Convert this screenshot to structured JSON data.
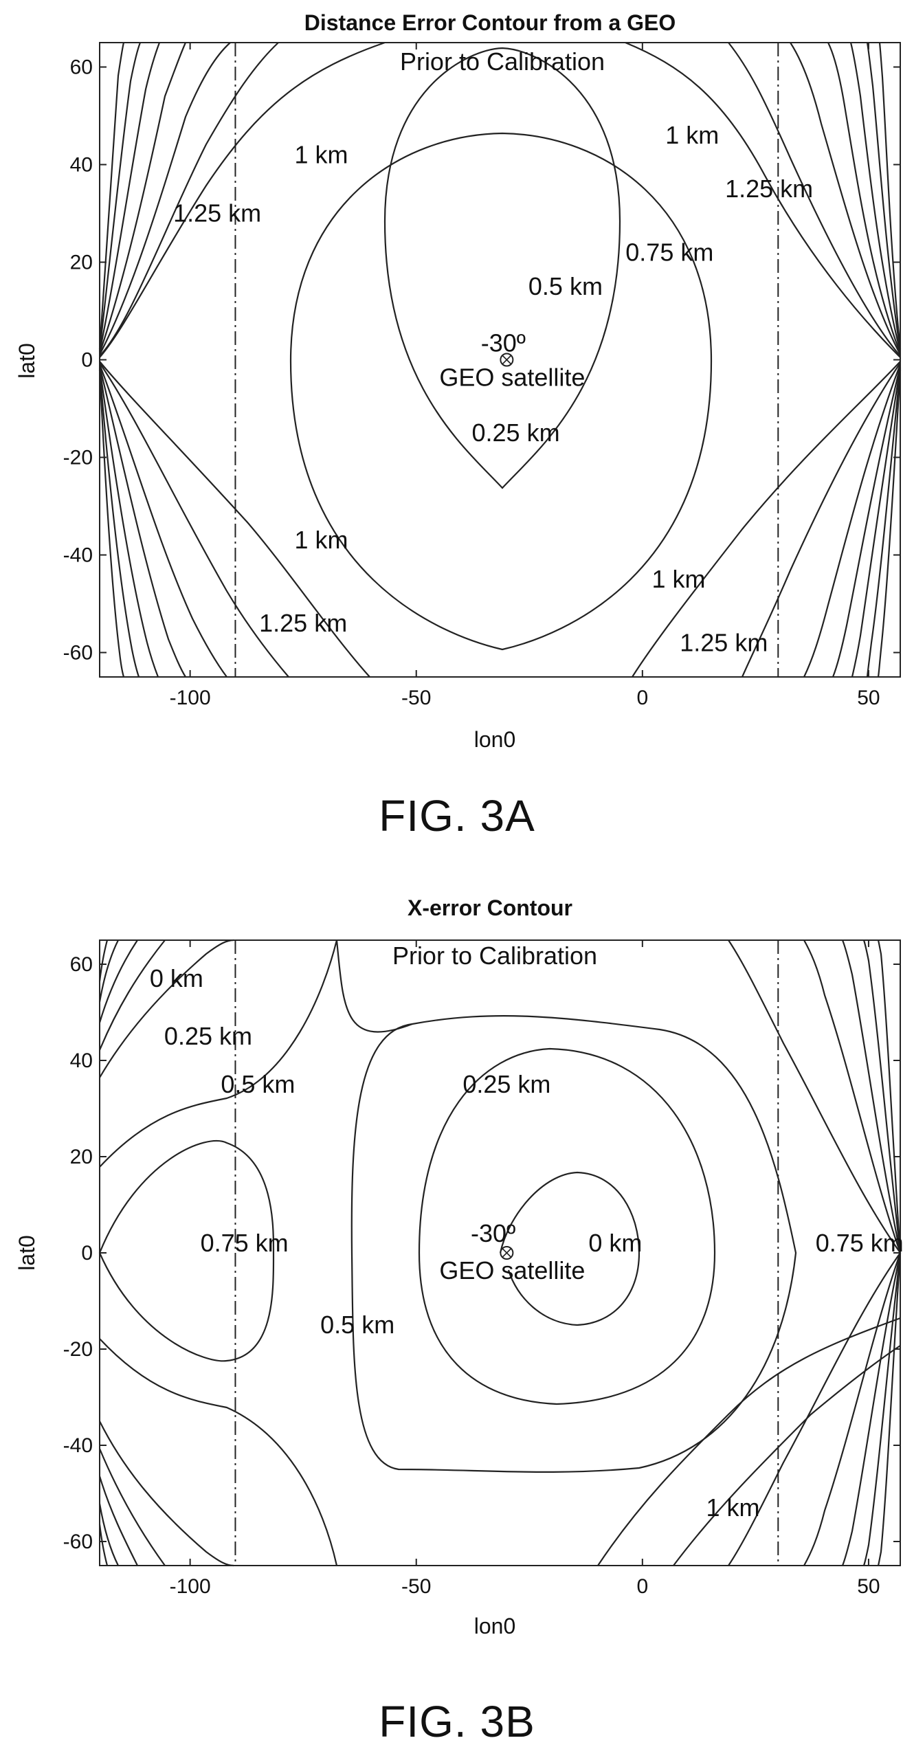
{
  "chart_data": [
    {
      "type": "contour",
      "title": "Distance Error Contour from a GEO",
      "subtitle": "Prior to Calibration",
      "xlabel": "lon0",
      "ylabel": "lat0",
      "xlim": [
        -120,
        57
      ],
      "ylim": [
        -65,
        65
      ],
      "xticks": [
        -100,
        -50,
        0,
        50
      ],
      "yticks": [
        60,
        40,
        20,
        0,
        -20,
        -40,
        -60
      ],
      "grid": false,
      "satellite": {
        "lon": -30,
        "lat": 0,
        "angle_label": "-30º",
        "label": "GEO satellite"
      },
      "vertical_lines": [
        -90,
        30
      ],
      "contour_levels_km": [
        0.25,
        0.5,
        0.75,
        1,
        1.25
      ],
      "contour_labels": [
        {
          "text": "1 km",
          "x": -71,
          "y": 42
        },
        {
          "text": "1.25 km",
          "x": -94,
          "y": 30
        },
        {
          "text": "1 km",
          "x": 11,
          "y": 46
        },
        {
          "text": "1.25 km",
          "x": 28,
          "y": 35
        },
        {
          "text": "0.75 km",
          "x": 6,
          "y": 22
        },
        {
          "text": "0.5 km",
          "x": -17,
          "y": 15
        },
        {
          "text": "0.25 km",
          "x": -28,
          "y": -15
        },
        {
          "text": "1 km",
          "x": -71,
          "y": -37
        },
        {
          "text": "1.25 km",
          "x": -75,
          "y": -54
        },
        {
          "text": "1 km",
          "x": 8,
          "y": -45
        },
        {
          "text": "1.25 km",
          "x": 18,
          "y": -58
        }
      ]
    },
    {
      "type": "contour",
      "title": "X-error Contour",
      "subtitle": "Prior to Calibration",
      "xlabel": "lon0",
      "ylabel": "lat0",
      "xlim": [
        -120,
        57
      ],
      "ylim": [
        -65,
        65
      ],
      "xticks": [
        -100,
        -50,
        0,
        50
      ],
      "yticks": [
        60,
        40,
        20,
        0,
        -20,
        -40,
        -60
      ],
      "grid": false,
      "satellite": {
        "lon": -30,
        "lat": 0,
        "angle_label": "-30º",
        "label": "GEO satellite"
      },
      "vertical_lines": [
        -90,
        30
      ],
      "contour_levels_km": [
        0,
        0.25,
        0.5,
        0.75,
        1
      ],
      "contour_labels": [
        {
          "text": "0 km",
          "x": -103,
          "y": 57
        },
        {
          "text": "0.25 km",
          "x": -96,
          "y": 45
        },
        {
          "text": "0.5 km",
          "x": -85,
          "y": 35
        },
        {
          "text": "0.25 km",
          "x": -30,
          "y": 35
        },
        {
          "text": "0.75 km",
          "x": -88,
          "y": 2
        },
        {
          "text": "-30º",
          "x": -33,
          "y": 4
        },
        {
          "text": "0 km",
          "x": -6,
          "y": 2
        },
        {
          "text": "0.75 km",
          "x": 48,
          "y": 2
        },
        {
          "text": "0.5 km",
          "x": -63,
          "y": -15
        },
        {
          "text": "1 km",
          "x": 20,
          "y": -53
        }
      ]
    }
  ],
  "figures": [
    {
      "caption": "FIG. 3A"
    },
    {
      "caption": "FIG. 3B"
    }
  ]
}
